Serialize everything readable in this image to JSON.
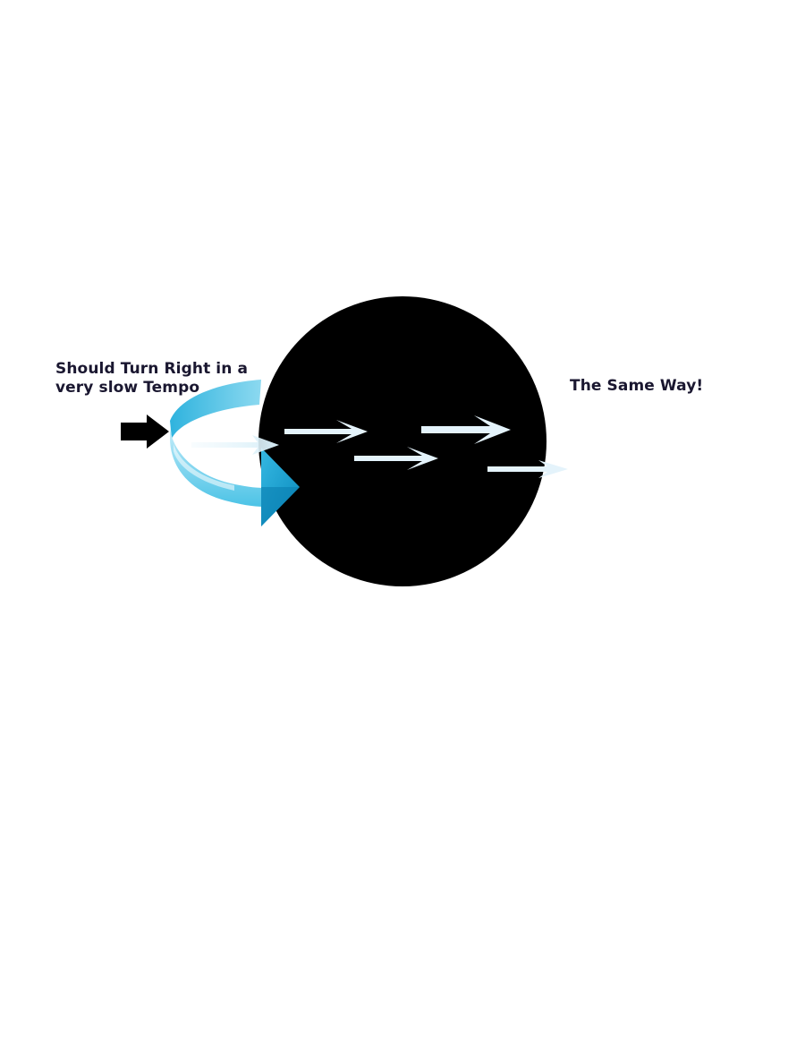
{
  "labels": {
    "left_line_1": "Should Turn Right in a",
    "left_line_2": "very slow Tempo",
    "right": "The Same Way!"
  },
  "colors": {
    "circle": "#000000",
    "text": "#1a1730",
    "pale_arrow": "#e4f3fb",
    "rotation_arrow_light": "#bfe9f7",
    "rotation_arrow_mid": "#4cc3e6",
    "rotation_arrow_dark": "#0e93c4",
    "pointer_arrow": "#000000"
  },
  "icons": {
    "pointer": "black-right-arrow-icon",
    "rotation": "clockwise-rotation-arrow-icon",
    "motion": "right-arrow-icon"
  }
}
